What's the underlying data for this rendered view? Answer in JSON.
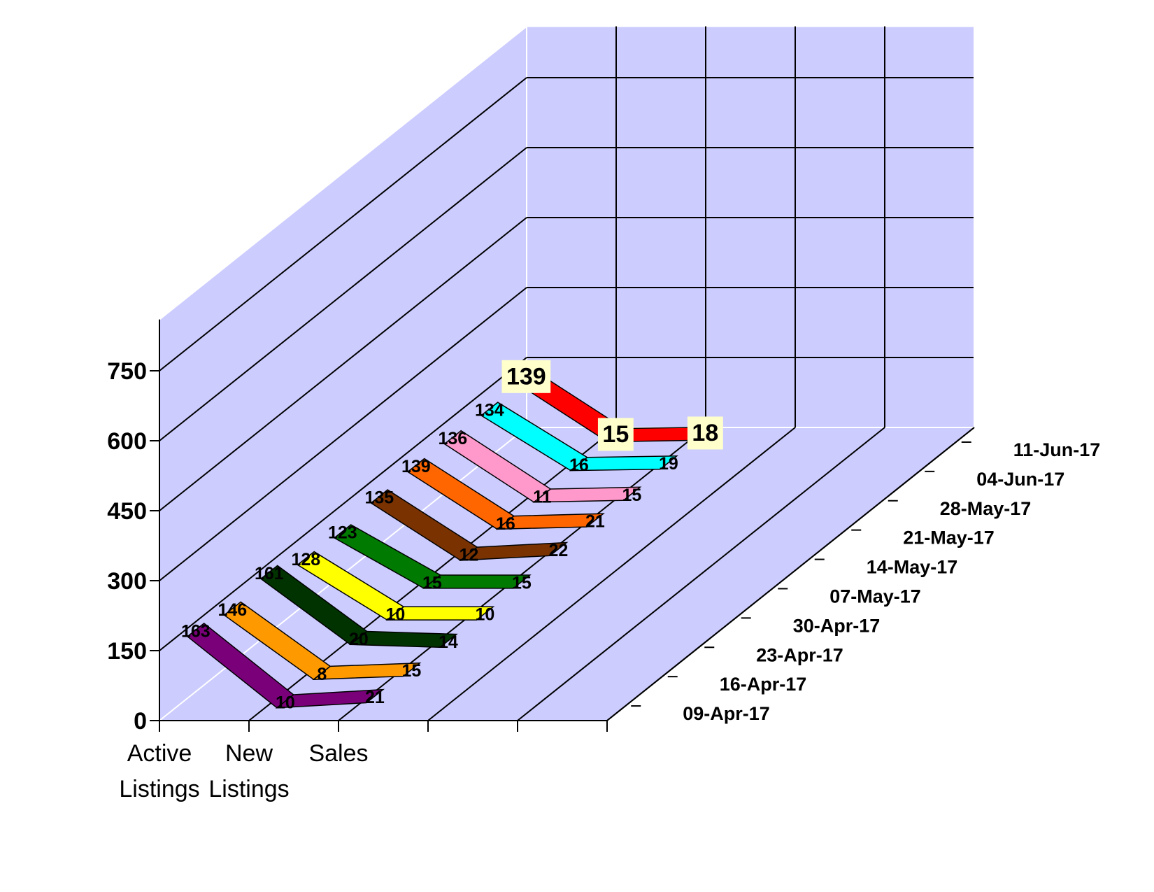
{
  "chart_data": {
    "type": "line",
    "style": "3d-ribbon",
    "categories": [
      "Active Listings",
      "New Listings",
      "Sales"
    ],
    "category_label_lines": [
      [
        "Active",
        "Listings"
      ],
      [
        "New",
        "Listings"
      ],
      [
        "Sales"
      ]
    ],
    "z_labels": [
      "09-Apr-17",
      "16-Apr-17",
      "23-Apr-17",
      "30-Apr-17",
      "07-May-17",
      "14-May-17",
      "21-May-17",
      "28-May-17",
      "04-Jun-17",
      "11-Jun-17"
    ],
    "y_ticks": [
      0,
      150,
      300,
      450,
      600,
      750
    ],
    "ylim": [
      0,
      750
    ],
    "grid": true,
    "wall_color": "#ccccff",
    "series": [
      {
        "name": "09-Apr-17",
        "values": [
          163,
          10,
          21
        ],
        "color": "#7a007a"
      },
      {
        "name": "16-Apr-17",
        "values": [
          146,
          8,
          15
        ],
        "color": "#ff9900"
      },
      {
        "name": "23-Apr-17",
        "values": [
          161,
          20,
          14
        ],
        "color": "#003300"
      },
      {
        "name": "30-Apr-17",
        "values": [
          128,
          10,
          10
        ],
        "color": "#ffff00"
      },
      {
        "name": "07-May-17",
        "values": [
          123,
          15,
          15
        ],
        "color": "#007a00"
      },
      {
        "name": "14-May-17",
        "values": [
          135,
          12,
          22
        ],
        "color": "#7a3300"
      },
      {
        "name": "21-May-17",
        "values": [
          139,
          16,
          21
        ],
        "color": "#ff6600"
      },
      {
        "name": "28-May-17",
        "values": [
          136,
          11,
          15
        ],
        "color": "#ff99cc"
      },
      {
        "name": "04-Jun-17",
        "values": [
          134,
          16,
          19
        ],
        "color": "#00ffff"
      },
      {
        "name": "11-Jun-17",
        "values": [
          139,
          15,
          18
        ],
        "color": "#ff0000"
      }
    ]
  }
}
